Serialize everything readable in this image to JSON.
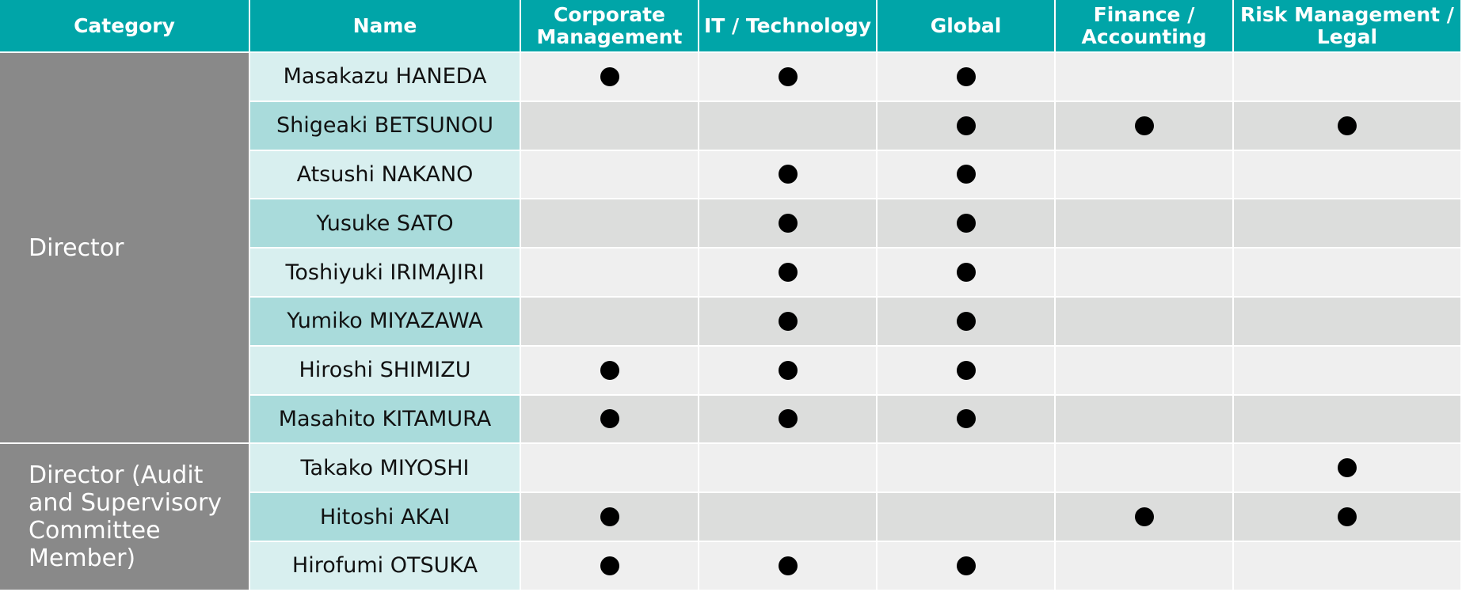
{
  "header": {
    "columns": [
      "Category",
      "Name",
      "Corporate Management",
      "IT / Technology",
      "Global",
      "Finance / Accounting",
      "Risk Management / Legal"
    ]
  },
  "groups": [
    {
      "category": "Director",
      "members": [
        {
          "name": "Masakazu HANEDA",
          "skills": [
            true,
            true,
            true,
            false,
            false
          ]
        },
        {
          "name": "Shigeaki BETSUNOU",
          "skills": [
            false,
            false,
            true,
            true,
            true
          ]
        },
        {
          "name": "Atsushi NAKANO",
          "skills": [
            false,
            true,
            true,
            false,
            false
          ]
        },
        {
          "name": "Yusuke SATO",
          "skills": [
            false,
            true,
            true,
            false,
            false
          ]
        },
        {
          "name": "Toshiyuki IRIMAJIRI",
          "skills": [
            false,
            true,
            true,
            false,
            false
          ]
        },
        {
          "name": "Yumiko MIYAZAWA",
          "skills": [
            false,
            true,
            true,
            false,
            false
          ]
        },
        {
          "name": "Hiroshi SHIMIZU",
          "skills": [
            true,
            true,
            true,
            false,
            false
          ]
        },
        {
          "name": "Masahito KITAMURA",
          "skills": [
            true,
            true,
            true,
            false,
            false
          ]
        }
      ]
    },
    {
      "category": "Director (Audit and Supervisory Committee Member)",
      "members": [
        {
          "name": "Takako MIYOSHI",
          "skills": [
            false,
            false,
            false,
            false,
            true
          ]
        },
        {
          "name": "Hitoshi AKAI",
          "skills": [
            true,
            false,
            false,
            true,
            true
          ]
        },
        {
          "name": "Hirofumi OTSUKA",
          "skills": [
            true,
            true,
            true,
            false,
            false
          ]
        }
      ]
    }
  ]
}
